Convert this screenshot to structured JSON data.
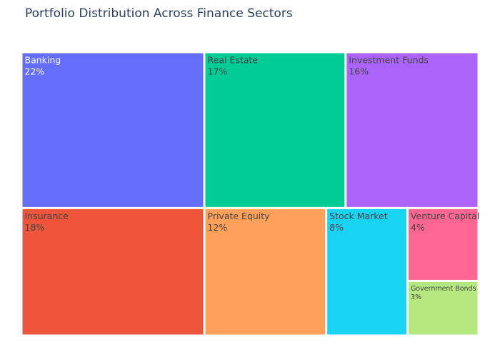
{
  "chart_data": {
    "type": "treemap",
    "title": "Portfolio Distribution Across Finance Sectors",
    "unit": "%",
    "sectors": [
      {
        "label": "Banking",
        "value": 22,
        "color": "#636efa",
        "text_color": "#ffffff"
      },
      {
        "label": "Real Estate",
        "value": 17,
        "color": "#00cc96",
        "text_color": "#444444"
      },
      {
        "label": "Investment Funds",
        "value": 16,
        "color": "#ab63fa",
        "text_color": "#444444"
      },
      {
        "label": "Insurance",
        "value": 18,
        "color": "#ef553b",
        "text_color": "#444444"
      },
      {
        "label": "Private Equity",
        "value": 12,
        "color": "#ffa15a",
        "text_color": "#444444"
      },
      {
        "label": "Stock Market",
        "value": 8,
        "color": "#19d3f3",
        "text_color": "#444444"
      },
      {
        "label": "Venture Capital",
        "value": 4,
        "color": "#ff6692",
        "text_color": "#444444"
      },
      {
        "label": "Government Bonds",
        "value": 3,
        "color": "#b6e880",
        "text_color": "#444444"
      }
    ]
  }
}
